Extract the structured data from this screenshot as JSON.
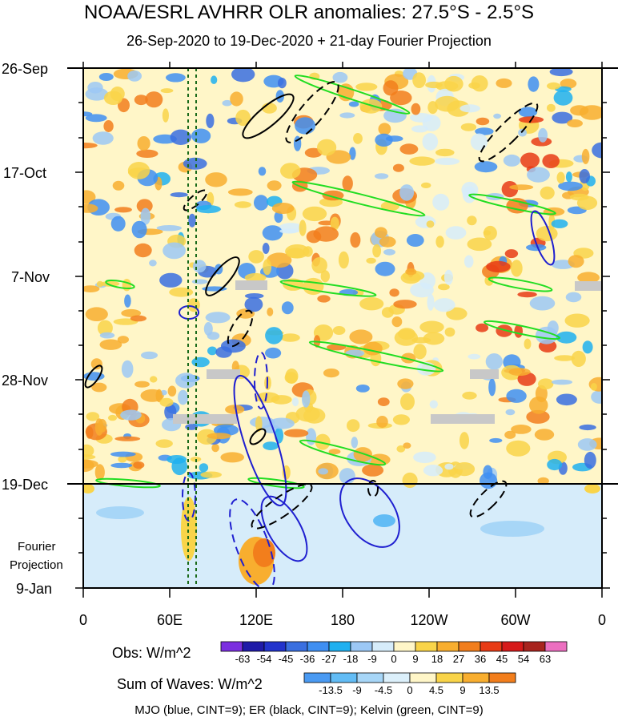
{
  "chart_data": {
    "type": "heatmap",
    "title": "NOAA/ESRL AVHRR OLR anomalies: 27.5°S - 2.5°S",
    "subtitle": "26-Sep-2020 to 19-Dec-2020 + 21-day Fourier Projection",
    "x_ticks": [
      "0",
      "60E",
      "120E",
      "180",
      "120W",
      "60W",
      "0"
    ],
    "y_ticks": [
      "26-Sep",
      "17-Oct",
      "7-Nov",
      "28-Nov",
      "19-Dec",
      "9-Jan"
    ],
    "projection_label": [
      "Fourier",
      "Projection"
    ],
    "obs_colorbar": {
      "title": "Obs: W/m^2",
      "levels": [
        "-63",
        "-54",
        "-45",
        "-36",
        "-27",
        "-18",
        "-9",
        "0",
        "9",
        "18",
        "27",
        "36",
        "45",
        "54",
        "63"
      ],
      "colors": [
        "#7b2fe0",
        "#1f1aa8",
        "#2233cc",
        "#3a6fe0",
        "#3f8ff2",
        "#1fb0f0",
        "#9cc8f5",
        "#d6ecfa",
        "#fff6c8",
        "#f9d449",
        "#f8ae2f",
        "#f27e1c",
        "#e83b15",
        "#d61a1a",
        "#a8241e",
        "#ec6fc0"
      ]
    },
    "waves_colorbar": {
      "title": "Sum of Waves: W/m^2",
      "levels": [
        "-13.5",
        "-9",
        "-4.5",
        "0",
        "4.5",
        "9",
        "13.5"
      ],
      "colors": [
        "#4a9af2",
        "#62bcf5",
        "#a7d6f7",
        "#dcf0fb",
        "#fff6c8",
        "#f9d449",
        "#f8ae2f",
        "#f27e1c"
      ]
    },
    "legend": "MJO (blue, CINT=9); ER (black, CINT=9); Kelvin (green, CINT=9)",
    "x_range": [
      "0",
      "0"
    ],
    "y_range": [
      "26-Sep",
      "9-Jan"
    ],
    "separator_date": "19-Dec",
    "dotted_lines_lon": [
      "~70E",
      "~80E"
    ]
  }
}
